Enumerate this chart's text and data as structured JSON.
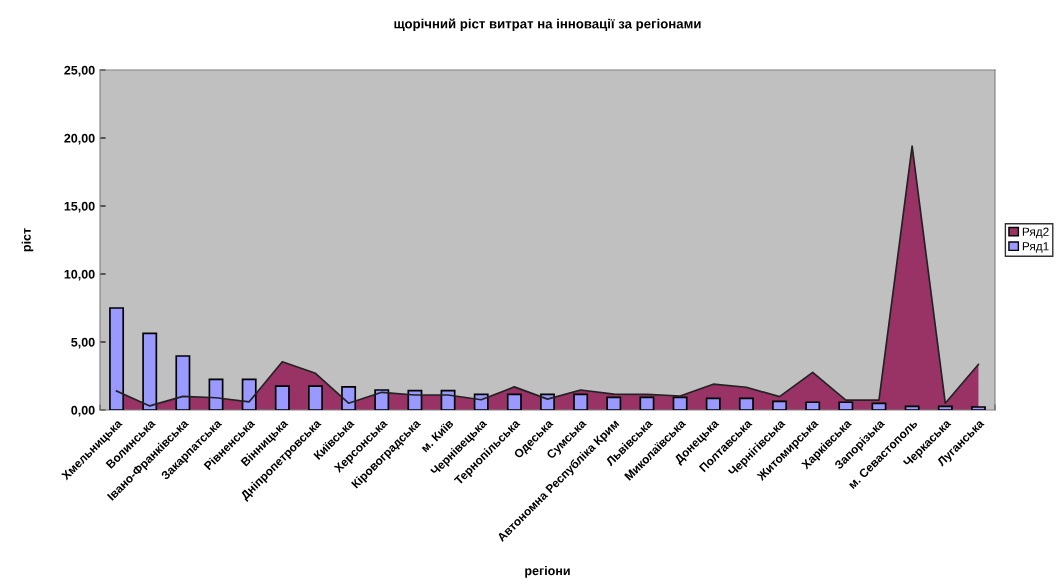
{
  "chart_data": {
    "type": "bar",
    "title": "щорічний ріст витрат на інновації за регіонами",
    "xlabel": "регіони",
    "ylabel": "ріст",
    "categories": [
      "Хмельницька",
      "Волинська",
      "Івано-Франківська",
      "Закарпатська",
      "Рівненська",
      "Вінницька",
      "Дніпропетровська",
      "Київська",
      "Херсонська",
      "Кіровоградська",
      "м. Київ",
      "Чернівецька",
      "Тернопільська",
      "Одеська",
      "Сумська",
      "Автономна Республіка Крим",
      "Львівська",
      "Миколаївська",
      "Донецька",
      "Полтавська",
      "Чернігівська",
      "Житомирська",
      "Харківська",
      "Запорізька",
      "м. Севастополь",
      "Черкаська",
      "Луганська"
    ],
    "series": [
      {
        "name": "Ряд2",
        "type": "area",
        "color": "#993366",
        "values": [
          1.4,
          0.3,
          1.0,
          0.9,
          0.6,
          3.55,
          2.7,
          0.5,
          1.3,
          1.1,
          1.1,
          0.75,
          1.7,
          0.8,
          1.47,
          1.17,
          1.15,
          1.03,
          1.9,
          1.67,
          0.98,
          2.77,
          0.73,
          0.73,
          19.4,
          0.5,
          3.36
        ]
      },
      {
        "name": "Ряд1",
        "color": "#9999ff",
        "values": [
          7.5,
          5.64,
          3.97,
          2.25,
          2.25,
          1.76,
          1.76,
          1.7,
          1.47,
          1.42,
          1.42,
          1.15,
          1.15,
          1.15,
          1.15,
          0.93,
          0.93,
          0.93,
          0.86,
          0.86,
          0.64,
          0.57,
          0.57,
          0.49,
          0.27,
          0.27,
          0.22
        ]
      }
    ],
    "ylim": [
      0,
      25
    ],
    "yticks": [
      {
        "value": 0,
        "label": "0,00"
      },
      {
        "value": 5,
        "label": "5,00"
      },
      {
        "value": 10,
        "label": "10,00"
      },
      {
        "value": 15,
        "label": "15,00"
      },
      {
        "value": 20,
        "label": "20,00"
      },
      {
        "value": 25,
        "label": "25,00"
      }
    ],
    "grid": false,
    "legend": "right"
  }
}
